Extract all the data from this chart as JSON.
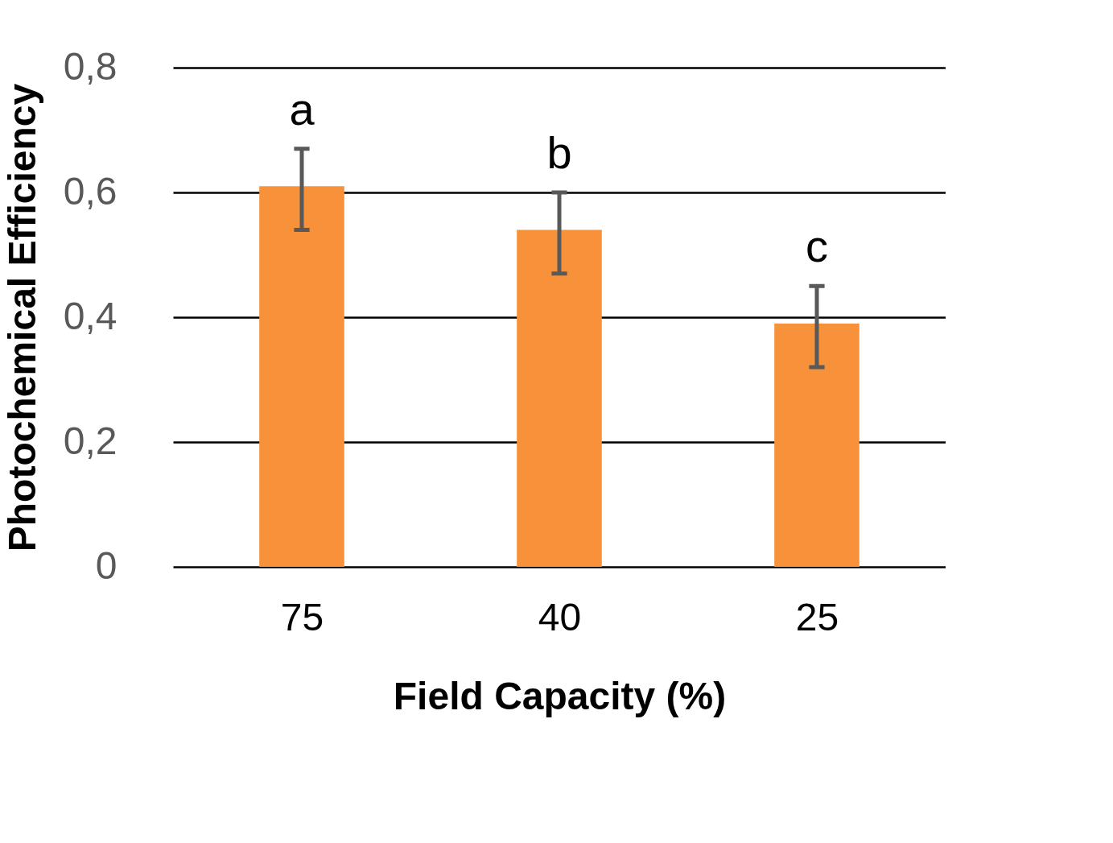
{
  "chart_data": {
    "type": "bar",
    "xlabel": "Field Capacity (%)",
    "ylabel": "Photochemical  Efficiency",
    "categories": [
      "75",
      "40",
      "25"
    ],
    "values": [
      0.61,
      0.54,
      0.39
    ],
    "errors": [
      [
        0.54,
        0.67
      ],
      [
        0.47,
        0.6
      ],
      [
        0.32,
        0.45
      ]
    ],
    "color": "#f7923a",
    "ylim": [
      0,
      0.8
    ],
    "yticks": [
      0,
      {
        "value": 0.2,
        "label": "0,2"
      },
      {
        "value": 0.4,
        "label": "0,4"
      },
      {
        "value": 0.6,
        "label": "0,6"
      },
      {
        "value": 0.8,
        "label": "0,8"
      }
    ],
    "annotations": [
      "a",
      "b",
      "c"
    ],
    "grid": "y"
  }
}
